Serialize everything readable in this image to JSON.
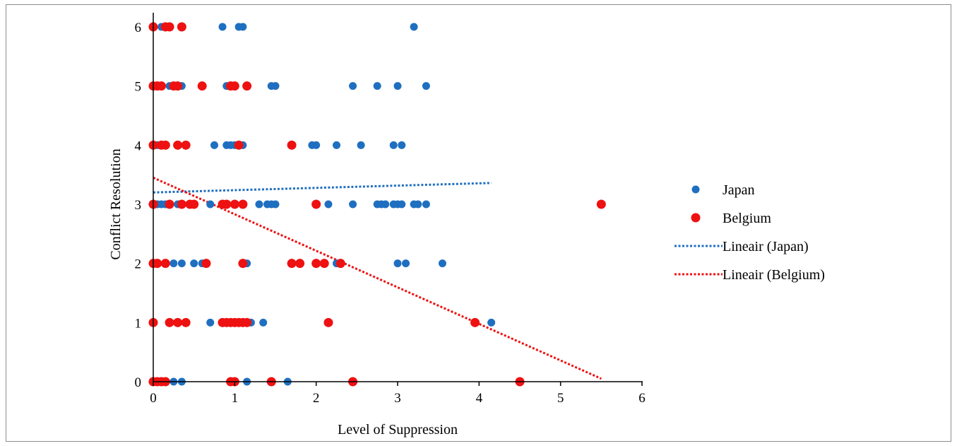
{
  "chart_data": {
    "type": "scatter",
    "title": "",
    "xlabel": "Level of Suppression",
    "ylabel": "Conflict Resolution",
    "xlim": [
      0,
      6
    ],
    "ylim": [
      0,
      6
    ],
    "x_ticks": [
      "0",
      "1",
      "2",
      "3",
      "4",
      "5",
      "6"
    ],
    "y_ticks": [
      "0",
      "1",
      "2",
      "3",
      "4",
      "5",
      "6"
    ],
    "grid": false,
    "legend_position": "right",
    "series": [
      {
        "name": "Japan",
        "color": "#1f6fc0",
        "marker": "circle",
        "points": [
          [
            0.1,
            6
          ],
          [
            0.15,
            6
          ],
          [
            0.85,
            6
          ],
          [
            1.05,
            6
          ],
          [
            1.1,
            6
          ],
          [
            3.2,
            6
          ],
          [
            0.05,
            5
          ],
          [
            0.2,
            5
          ],
          [
            0.25,
            5
          ],
          [
            0.35,
            5
          ],
          [
            0.9,
            5
          ],
          [
            1.45,
            5
          ],
          [
            1.5,
            5
          ],
          [
            2.45,
            5
          ],
          [
            2.75,
            5
          ],
          [
            3.0,
            5
          ],
          [
            3.35,
            5
          ],
          [
            0.05,
            4
          ],
          [
            0.15,
            4
          ],
          [
            0.75,
            4
          ],
          [
            0.9,
            4
          ],
          [
            0.95,
            4
          ],
          [
            1.0,
            4
          ],
          [
            1.1,
            4
          ],
          [
            1.95,
            4
          ],
          [
            2.0,
            4
          ],
          [
            2.25,
            4
          ],
          [
            2.55,
            4
          ],
          [
            2.95,
            4
          ],
          [
            3.05,
            4
          ],
          [
            0.05,
            3
          ],
          [
            0.1,
            3
          ],
          [
            0.15,
            3
          ],
          [
            0.3,
            3
          ],
          [
            0.7,
            3
          ],
          [
            0.85,
            3
          ],
          [
            1.0,
            3
          ],
          [
            1.3,
            3
          ],
          [
            1.4,
            3
          ],
          [
            1.45,
            3
          ],
          [
            1.5,
            3
          ],
          [
            2.15,
            3
          ],
          [
            2.45,
            3
          ],
          [
            2.75,
            3
          ],
          [
            2.8,
            3
          ],
          [
            2.85,
            3
          ],
          [
            2.95,
            3
          ],
          [
            3.0,
            3
          ],
          [
            3.05,
            3
          ],
          [
            3.2,
            3
          ],
          [
            3.25,
            3
          ],
          [
            3.35,
            3
          ],
          [
            0.05,
            2
          ],
          [
            0.25,
            2
          ],
          [
            0.35,
            2
          ],
          [
            0.5,
            2
          ],
          [
            0.6,
            2
          ],
          [
            1.15,
            2
          ],
          [
            2.25,
            2
          ],
          [
            3.0,
            2
          ],
          [
            3.1,
            2
          ],
          [
            3.55,
            2
          ],
          [
            0.7,
            1
          ],
          [
            1.2,
            1
          ],
          [
            1.35,
            1
          ],
          [
            4.15,
            1
          ],
          [
            0.05,
            0
          ],
          [
            0.25,
            0
          ],
          [
            0.35,
            0
          ],
          [
            1.15,
            0
          ],
          [
            1.65,
            0
          ]
        ]
      },
      {
        "name": "Belgium",
        "color": "#ee1111",
        "marker": "circle",
        "points": [
          [
            0.0,
            6
          ],
          [
            0.15,
            6
          ],
          [
            0.2,
            6
          ],
          [
            0.35,
            6
          ],
          [
            0.0,
            5
          ],
          [
            0.05,
            5
          ],
          [
            0.1,
            5
          ],
          [
            0.25,
            5
          ],
          [
            0.3,
            5
          ],
          [
            0.6,
            5
          ],
          [
            0.95,
            5
          ],
          [
            1.0,
            5
          ],
          [
            1.15,
            5
          ],
          [
            0.0,
            4
          ],
          [
            0.1,
            4
          ],
          [
            0.15,
            4
          ],
          [
            0.3,
            4
          ],
          [
            0.4,
            4
          ],
          [
            1.05,
            4
          ],
          [
            1.7,
            4
          ],
          [
            0.0,
            3
          ],
          [
            0.2,
            3
          ],
          [
            0.35,
            3
          ],
          [
            0.45,
            3
          ],
          [
            0.5,
            3
          ],
          [
            0.85,
            3
          ],
          [
            0.9,
            3
          ],
          [
            1.0,
            3
          ],
          [
            1.1,
            3
          ],
          [
            2.0,
            3
          ],
          [
            5.5,
            3
          ],
          [
            0.0,
            2
          ],
          [
            0.05,
            2
          ],
          [
            0.15,
            2
          ],
          [
            0.65,
            2
          ],
          [
            1.1,
            2
          ],
          [
            1.7,
            2
          ],
          [
            1.8,
            2
          ],
          [
            2.0,
            2
          ],
          [
            2.1,
            2
          ],
          [
            2.3,
            2
          ],
          [
            0.0,
            1
          ],
          [
            0.2,
            1
          ],
          [
            0.3,
            1
          ],
          [
            0.4,
            1
          ],
          [
            0.85,
            1
          ],
          [
            0.9,
            1
          ],
          [
            0.95,
            1
          ],
          [
            1.0,
            1
          ],
          [
            1.05,
            1
          ],
          [
            1.1,
            1
          ],
          [
            1.15,
            1
          ],
          [
            2.15,
            1
          ],
          [
            3.95,
            1
          ],
          [
            0.0,
            0
          ],
          [
            0.05,
            0
          ],
          [
            0.1,
            0
          ],
          [
            0.15,
            0
          ],
          [
            0.95,
            0
          ],
          [
            1.0,
            0
          ],
          [
            1.45,
            0
          ],
          [
            2.45,
            0
          ],
          [
            4.5,
            0
          ]
        ]
      }
    ],
    "trendlines": [
      {
        "name": "Lineair (Japan)",
        "color": "#1f6fc0",
        "style": "dotted",
        "x": [
          0.0,
          4.15
        ],
        "y": [
          3.2,
          3.36
        ]
      },
      {
        "name": "Lineair (Belgium)",
        "color": "#ee1111",
        "style": "dotted",
        "x": [
          0.0,
          5.5
        ],
        "y": [
          3.45,
          0.05
        ]
      }
    ]
  }
}
